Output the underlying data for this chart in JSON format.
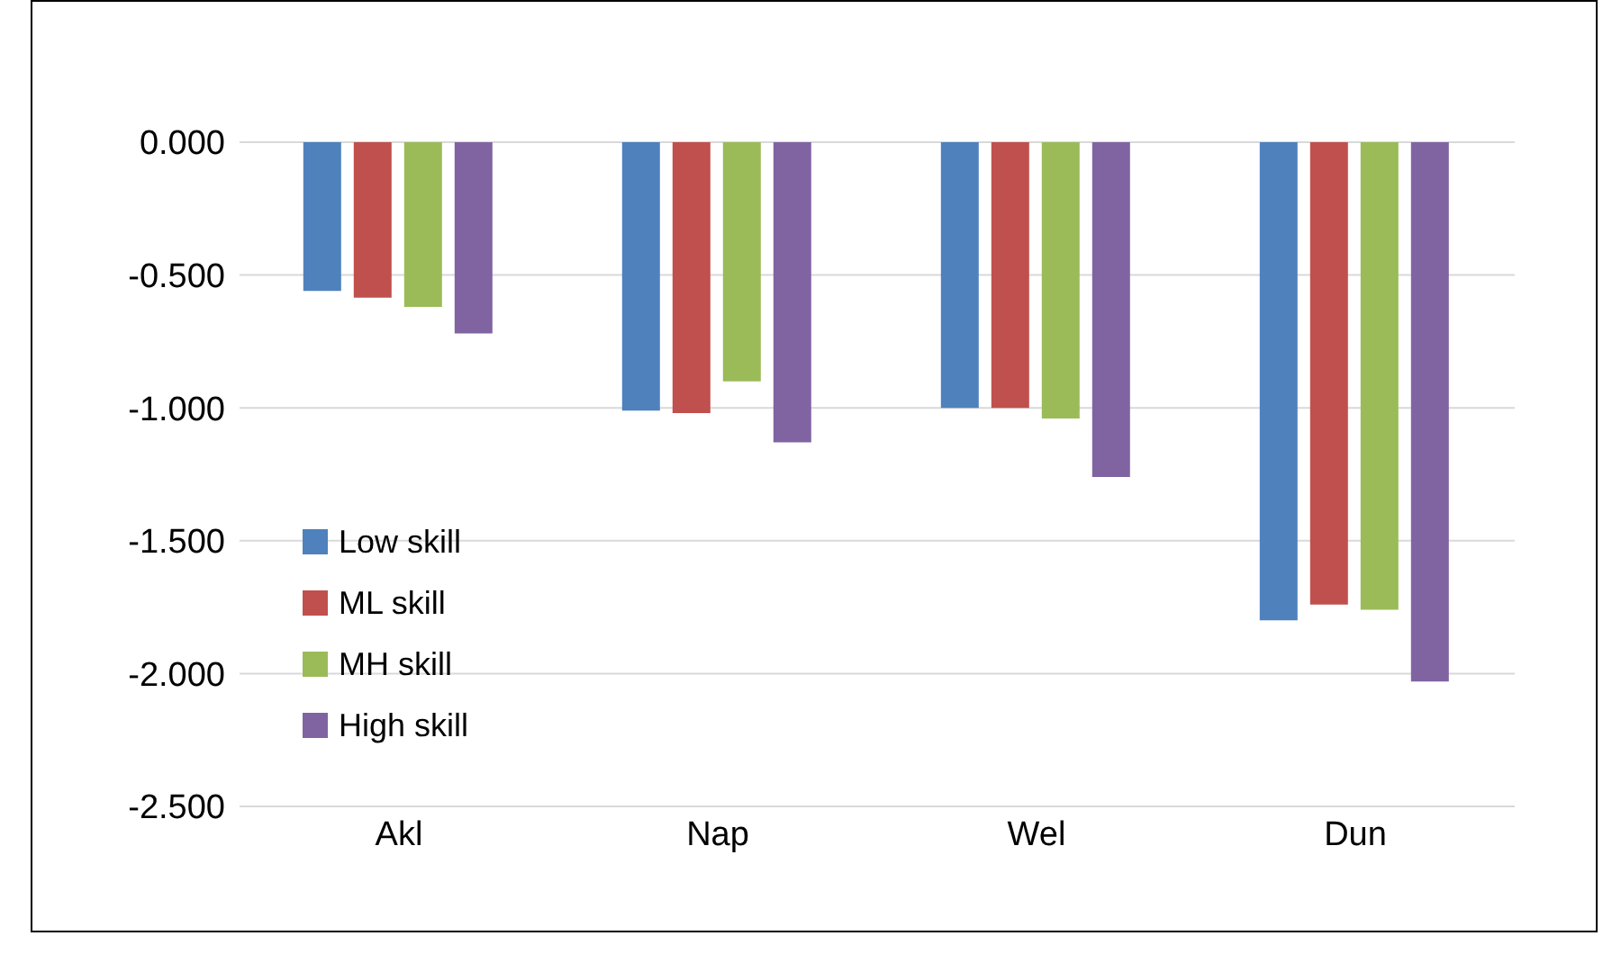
{
  "chart_data": {
    "type": "bar",
    "categories": [
      "Akl",
      "Nap",
      "Wel",
      "Dun"
    ],
    "series": [
      {
        "name": "Low skill",
        "color": "#4f81bd",
        "values": [
          -0.56,
          -1.01,
          -1.0,
          -1.8
        ]
      },
      {
        "name": "ML skill",
        "color": "#c0504d",
        "values": [
          -0.585,
          -1.02,
          -1.0,
          -1.74
        ]
      },
      {
        "name": "MH skill",
        "color": "#9bbb59",
        "values": [
          -0.62,
          -0.9,
          -1.04,
          -1.76
        ]
      },
      {
        "name": "High skill",
        "color": "#8064a2",
        "values": [
          -0.72,
          -1.13,
          -1.26,
          -2.03
        ]
      }
    ],
    "ylim": [
      -2.5,
      0
    ],
    "yticks": [
      {
        "value": 0,
        "label": "0.000"
      },
      {
        "value": -0.5,
        "label": "-0.500"
      },
      {
        "value": -1,
        "label": "-1.000"
      },
      {
        "value": -1.5,
        "label": "-1.500"
      },
      {
        "value": -2,
        "label": "-2.000"
      },
      {
        "value": -2.5,
        "label": "-2.500"
      }
    ],
    "grid": "y",
    "legend": "left"
  }
}
